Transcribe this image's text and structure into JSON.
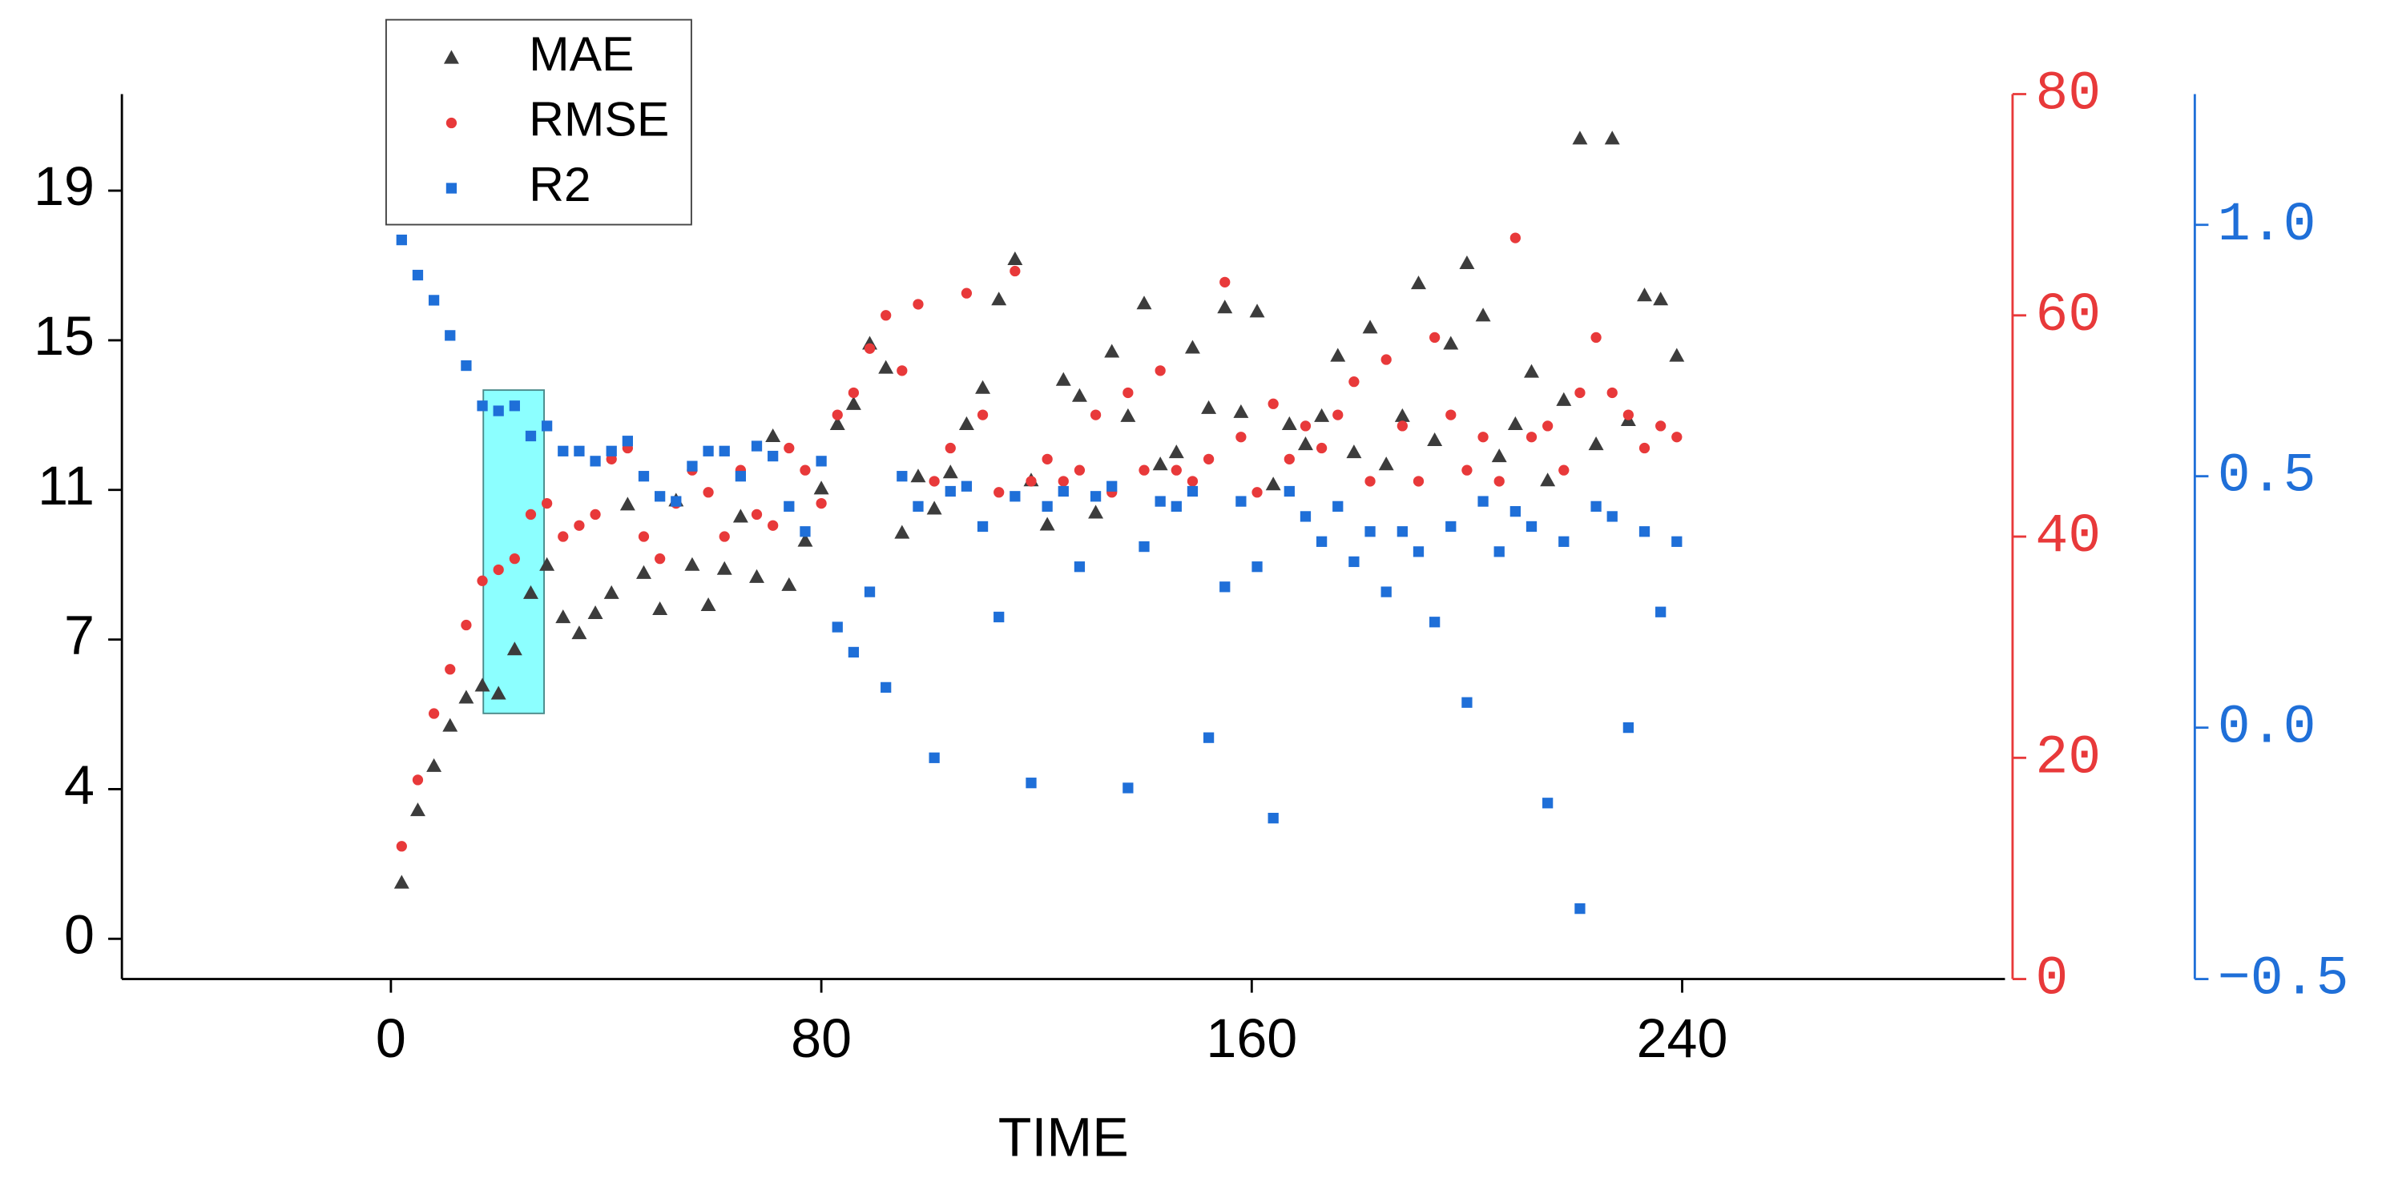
{
  "chart_data": {
    "type": "scatter",
    "x_label": "TIME",
    "x": [
      2,
      5,
      8,
      11,
      14,
      17,
      20,
      23,
      26,
      29,
      32,
      35,
      38,
      41,
      44,
      47,
      50,
      53,
      56,
      59,
      62,
      65,
      68,
      71,
      74,
      77,
      80,
      83,
      86,
      89,
      92,
      95,
      98,
      101,
      104,
      107,
      110,
      113,
      116,
      119,
      122,
      125,
      128,
      131,
      134,
      137,
      140,
      143,
      146,
      149,
      152,
      155,
      158,
      161,
      164,
      167,
      170,
      173,
      176,
      179,
      182,
      185,
      188,
      191,
      194,
      197,
      200,
      203,
      206,
      209,
      212,
      215,
      218,
      221,
      224,
      227,
      230,
      233,
      236,
      239
    ],
    "series": [
      {
        "name": "MAE",
        "color": "#3c3c3c",
        "marker": "triangle",
        "axis": "y",
        "values": [
          1.4,
          3.2,
          4.3,
          5.3,
          6.0,
          6.3,
          6.1,
          7.2,
          8.6,
          9.3,
          8.0,
          7.6,
          8.1,
          8.6,
          10.8,
          9.1,
          8.2,
          10.9,
          9.3,
          8.3,
          9.2,
          10.5,
          9.0,
          12.5,
          8.8,
          9.9,
          11.2,
          12.8,
          13.3,
          14.8,
          14.2,
          10.1,
          11.5,
          10.7,
          11.6,
          12.8,
          13.7,
          15.9,
          16.9,
          11.4,
          10.3,
          13.9,
          13.5,
          10.6,
          14.6,
          13.0,
          15.8,
          11.8,
          12.1,
          14.7,
          13.2,
          15.7,
          13.1,
          15.6,
          11.3,
          12.8,
          12.3,
          13.0,
          14.5,
          12.1,
          15.2,
          11.8,
          13.0,
          16.3,
          12.4,
          14.8,
          16.8,
          15.5,
          12.0,
          12.8,
          14.1,
          11.4,
          13.4,
          19.9,
          12.3,
          19.9,
          12.9,
          16.0,
          15.9,
          14.5
        ]
      },
      {
        "name": "RMSE",
        "color": "#e8393a",
        "marker": "circle",
        "axis": "y2",
        "values": [
          12,
          18,
          24,
          28,
          32,
          36,
          37,
          38,
          42,
          43,
          40,
          41,
          42,
          47,
          48,
          40,
          38,
          43,
          46,
          44,
          40,
          46,
          42,
          41,
          48,
          46,
          43,
          51,
          53,
          57,
          60,
          55,
          61,
          45,
          48,
          62,
          51,
          44,
          64,
          45,
          47,
          45,
          46,
          51,
          44,
          53,
          46,
          55,
          46,
          45,
          47,
          63,
          49,
          44,
          52,
          47,
          50,
          48,
          51,
          54,
          45,
          56,
          50,
          45,
          58,
          51,
          46,
          49,
          45,
          67,
          49,
          50,
          46,
          53,
          58,
          53,
          51,
          48,
          50,
          49
        ]
      },
      {
        "name": "R2",
        "color": "#1f6fd8",
        "marker": "square",
        "axis": "y3",
        "values": [
          0.97,
          0.9,
          0.85,
          0.78,
          0.72,
          0.64,
          0.63,
          0.64,
          0.58,
          0.6,
          0.55,
          0.55,
          0.53,
          0.55,
          0.57,
          0.5,
          0.46,
          0.45,
          0.52,
          0.55,
          0.55,
          0.5,
          0.56,
          0.54,
          0.44,
          0.39,
          0.53,
          0.2,
          0.15,
          0.27,
          0.08,
          0.5,
          0.44,
          -0.06,
          0.47,
          0.48,
          0.4,
          0.22,
          0.46,
          -0.11,
          0.44,
          0.47,
          0.32,
          0.46,
          0.48,
          -0.12,
          0.36,
          0.45,
          0.44,
          0.47,
          -0.02,
          0.28,
          0.45,
          0.32,
          -0.18,
          0.47,
          0.42,
          0.37,
          0.44,
          0.33,
          0.39,
          0.27,
          0.39,
          0.35,
          0.21,
          0.4,
          0.05,
          0.45,
          0.35,
          0.43,
          0.4,
          -0.15,
          0.37,
          -0.36,
          0.44,
          0.42,
          0.0,
          0.39,
          0.23,
          0.37
        ]
      }
    ],
    "xlim": [
      -50,
      300
    ],
    "xticks": [
      0,
      80,
      160,
      240
    ],
    "ylim": [
      -1,
      21
    ],
    "yticks": [
      0,
      {
        "value": 3.72,
        "label": "4"
      },
      {
        "value": 7.44,
        "label": "7"
      },
      {
        "value": 11.16,
        "label": "11"
      },
      {
        "value": 14.88,
        "label": "15"
      },
      {
        "value": 18.6,
        "label": "19"
      }
    ],
    "y2lim": [
      0,
      80
    ],
    "y2ticks": [
      0,
      20,
      40,
      60,
      80
    ],
    "y3lim": [
      -0.5,
      1.26
    ],
    "y3ticks": [
      {
        "value": -0.5,
        "label": "−0.5"
      },
      {
        "value": 0,
        "label": "0.0"
      },
      {
        "value": 0.5,
        "label": "0.5"
      },
      {
        "value": 1.0,
        "label": "1.0"
      }
    ],
    "legend": "upper left"
  }
}
